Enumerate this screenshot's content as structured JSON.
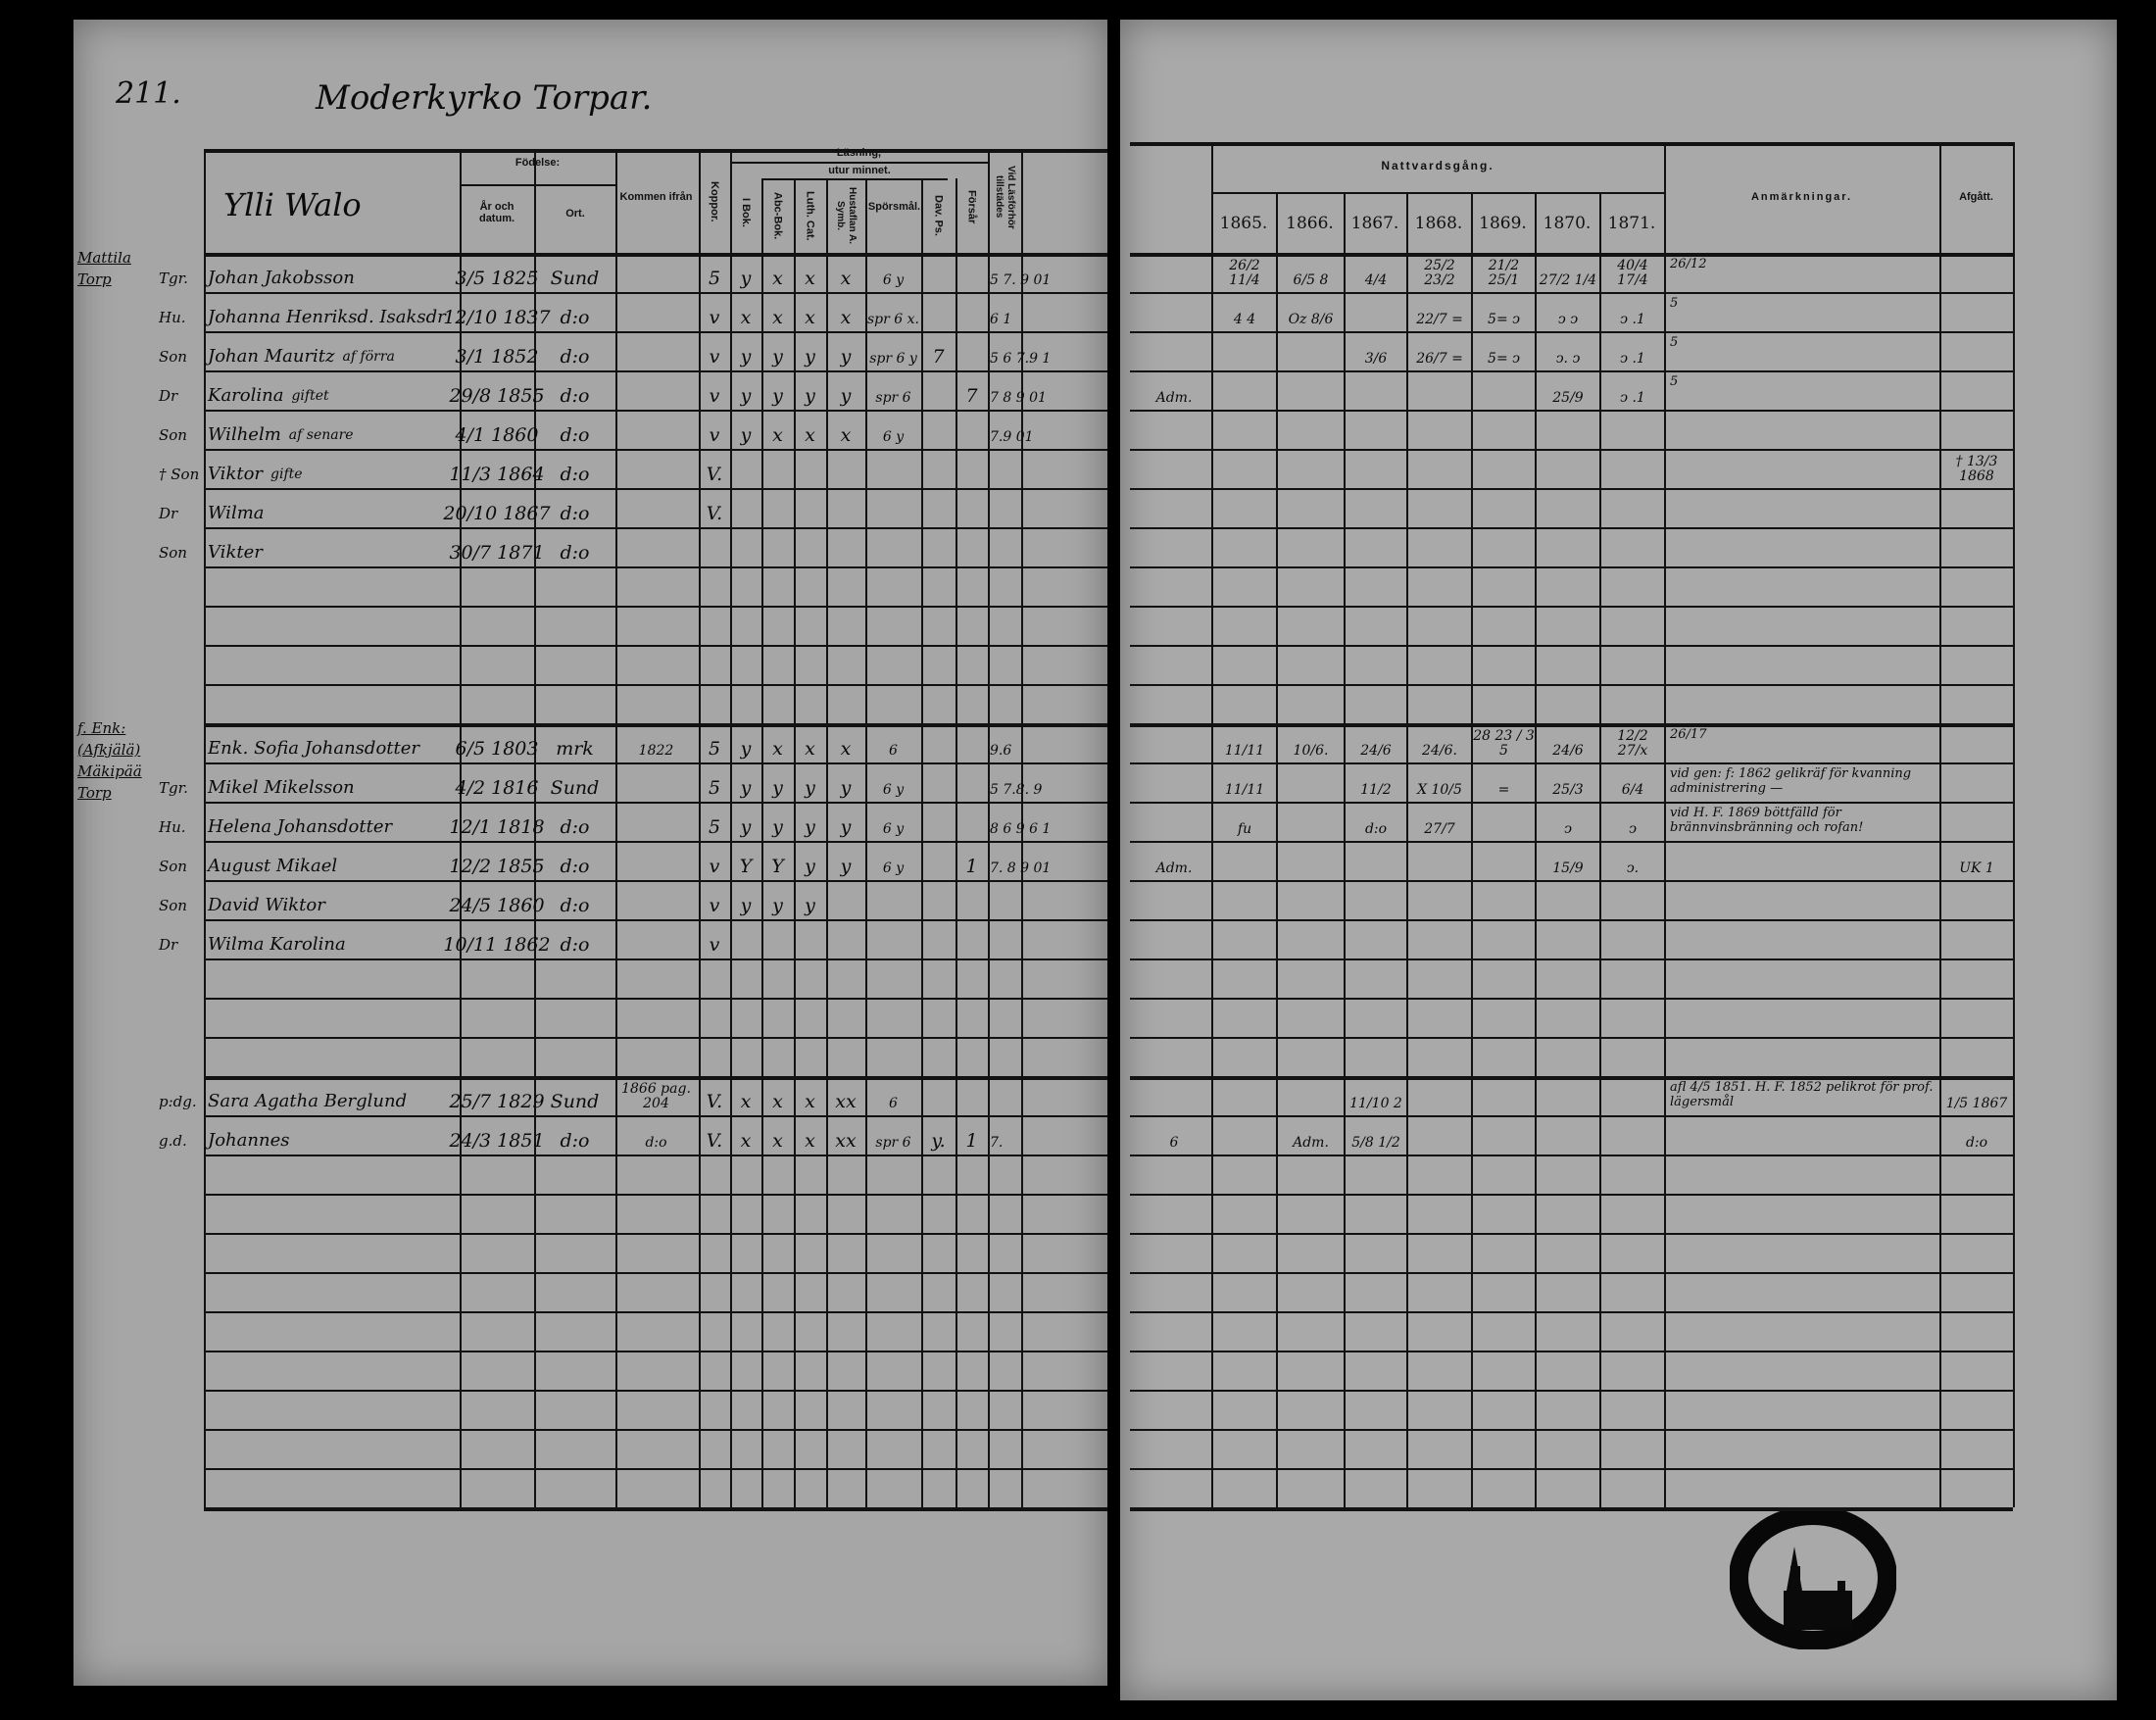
{
  "left": {
    "page_number": "211.",
    "title": "Moderkyrko Torpar.",
    "name_header": "Ylli Walo",
    "headers": {
      "birth": "Födelse:",
      "birth_date": "År och datum.",
      "birth_place": "Ort.",
      "came_from": "Kommen ifrån",
      "smallpox": "Koppor.",
      "reading": "Läsning,",
      "from_memory": "utur minnet.",
      "in_book": "I Bok.",
      "abc_book": "Abc-Bok.",
      "luth_cat": "Luth. Cat.",
      "household_table": "Hustaflan A. Symb.",
      "questions": "Spörsmål.",
      "dav_ps": "Dav. Ps.",
      "confirmation": "Försår",
      "present_at_exam": "Vid Läsförhör tillstädes"
    },
    "households": [
      {
        "label": "Mattila Torp",
        "rows": [
          {
            "role": "Tgr.",
            "name": "Johan Jakobsson",
            "note": "",
            "born": "3/5 1825",
            "place": "Sund",
            "came_from": "",
            "koppor": "5",
            "i_bok": "y",
            "abc": "x",
            "luth": "x",
            "husta": "x",
            "spors": "6 y",
            "dav": "",
            "forsar": "",
            "lasforhor": "5 7. 9 01"
          },
          {
            "role": "Hu.",
            "name": "Johanna Henriksd. Isaksdr",
            "note": "",
            "born": "12/10 1837",
            "place": "d:o",
            "came_from": "",
            "koppor": "v",
            "i_bok": "x",
            "abc": "x",
            "luth": "x",
            "husta": "x",
            "spors": "spr 6 x.",
            "dav": "",
            "forsar": "",
            "lasforhor": "6 1"
          },
          {
            "role": "Son",
            "name": "Johan Mauritz",
            "note": "af förra",
            "born": "3/1 1852",
            "place": "d:o",
            "came_from": "",
            "koppor": "v",
            "i_bok": "y",
            "abc": "y",
            "luth": "y",
            "husta": "y",
            "spors": "spr 6 y",
            "dav": "7",
            "forsar": "",
            "lasforhor": "5 6 7.9 1"
          },
          {
            "role": "Dr",
            "name": "Karolina",
            "note": "giftet",
            "born": "29/8 1855",
            "place": "d:o",
            "came_from": "",
            "koppor": "v",
            "i_bok": "y",
            "abc": "y",
            "luth": "y",
            "husta": "y",
            "spors": "spr 6",
            "dav": "",
            "forsar": "7",
            "lasforhor": "7 8 9 01"
          },
          {
            "role": "Son",
            "name": "Wilhelm",
            "note": "af senare",
            "born": "4/1 1860",
            "place": "d:o",
            "came_from": "",
            "koppor": "v",
            "i_bok": "y",
            "abc": "x",
            "luth": "x",
            "husta": "x",
            "spors": "6 y",
            "dav": "",
            "forsar": "",
            "lasforhor": "7.9 01"
          },
          {
            "role": "† Son",
            "name": "Viktor",
            "note": "gifte",
            "born": "11/3 1864",
            "place": "d:o",
            "came_from": "",
            "koppor": "V.",
            "i_bok": "",
            "abc": "",
            "luth": "",
            "husta": "",
            "spors": "",
            "dav": "",
            "forsar": "",
            "lasforhor": ""
          },
          {
            "role": "Dr",
            "name": "Wilma",
            "note": "",
            "born": "20/10 1867",
            "place": "d:o",
            "came_from": "",
            "koppor": "V.",
            "i_bok": "",
            "abc": "",
            "luth": "",
            "husta": "",
            "spors": "",
            "dav": "",
            "forsar": "",
            "lasforhor": ""
          },
          {
            "role": "Son",
            "name": "Vikter",
            "note": "",
            "born": "30/7 1871",
            "place": "d:o",
            "came_from": "",
            "koppor": "",
            "i_bok": "",
            "abc": "",
            "luth": "",
            "husta": "",
            "spors": "",
            "dav": "",
            "forsar": "",
            "lasforhor": ""
          }
        ]
      },
      {
        "label": "f. Enk: (Afkjälä) Mäkipää Torp",
        "rows": [
          {
            "role": "",
            "name": "Enk. Sofia Johansdotter",
            "note": "",
            "born": "6/5 1803",
            "place": "mrk",
            "came_from": "1822",
            "koppor": "5",
            "i_bok": "y",
            "abc": "x",
            "luth": "x",
            "husta": "x",
            "spors": "6",
            "dav": "",
            "forsar": "",
            "lasforhor": "9.6"
          },
          {
            "role": "Tgr.",
            "name": "Mikel Mikelsson",
            "note": "",
            "born": "4/2 1816",
            "place": "Sund",
            "came_from": "",
            "koppor": "5",
            "i_bok": "y",
            "abc": "y",
            "luth": "y",
            "husta": "y",
            "spors": "6 y",
            "dav": "",
            "forsar": "",
            "lasforhor": "5 7.8. 9"
          },
          {
            "role": "Hu.",
            "name": "Helena Johansdotter",
            "note": "",
            "born": "12/1 1818",
            "place": "d:o",
            "came_from": "",
            "koppor": "5",
            "i_bok": "y",
            "abc": "y",
            "luth": "y",
            "husta": "y",
            "spors": "6 y",
            "dav": "",
            "forsar": "",
            "lasforhor": "8 6 9 6 1"
          },
          {
            "role": "Son",
            "name": "August Mikael",
            "note": "",
            "born": "12/2 1855",
            "place": "d:o",
            "came_from": "",
            "koppor": "v",
            "i_bok": "Y",
            "abc": "Y",
            "luth": "y",
            "husta": "y",
            "spors": "6 y",
            "dav": "",
            "forsar": "1",
            "lasforhor": "7. 8 9 01"
          },
          {
            "role": "Son",
            "name": "David Wiktor",
            "note": "",
            "born": "24/5 1860",
            "place": "d:o",
            "came_from": "",
            "koppor": "v",
            "i_bok": "y",
            "abc": "y",
            "luth": "y",
            "husta": "",
            "spors": "",
            "dav": "",
            "forsar": "",
            "lasforhor": ""
          },
          {
            "role": "Dr",
            "name": "Wilma Karolina",
            "note": "",
            "born": "10/11 1862",
            "place": "d:o",
            "came_from": "",
            "koppor": "v",
            "i_bok": "",
            "abc": "",
            "luth": "",
            "husta": "",
            "spors": "",
            "dav": "",
            "forsar": "",
            "lasforhor": ""
          }
        ]
      },
      {
        "label": "",
        "rows": [
          {
            "role": "p:dg.",
            "name": "Sara Agatha Berglund",
            "note": "",
            "born": "25/7 1829",
            "place": "Sund",
            "came_from": "1866 pag. 204",
            "koppor": "V.",
            "i_bok": "x",
            "abc": "x",
            "luth": "x",
            "husta": "xx",
            "spors": "6",
            "dav": "",
            "forsar": "",
            "lasforhor": ""
          },
          {
            "role": "g.d.",
            "name": "Johannes",
            "note": "",
            "born": "24/3 1851",
            "place": "d:o",
            "came_from": "d:o",
            "koppor": "V.",
            "i_bok": "x",
            "abc": "x",
            "luth": "x",
            "husta": "xx",
            "spors": "spr 6",
            "dav": "y.",
            "forsar": "1",
            "lasforhor": "7."
          }
        ]
      }
    ]
  },
  "right": {
    "headers": {
      "communion": "Nattvardsgång.",
      "years": [
        "1865.",
        "1866.",
        "1867.",
        "1868.",
        "1869.",
        "1870.",
        "1871."
      ],
      "remarks": "Anmärkningar.",
      "departed": "Afgått."
    },
    "households": [
      {
        "rows": [
          {
            "margin": "",
            "comm": [
              "26/2 11/4",
              "6/5 8",
              "4/4",
              "25/2 23/2",
              "21/2 25/1",
              "27/2 1/4",
              "40/4 17/4"
            ],
            "remark": "26/12",
            "afgatt": ""
          },
          {
            "margin": "",
            "comm": [
              "4 4",
              "Oz 8/6",
              "",
              "22/7 =",
              "5= ↄ",
              "ↄ ↄ",
              "ↄ .1"
            ],
            "remark": "5",
            "afgatt": ""
          },
          {
            "margin": "",
            "comm": [
              "",
              "",
              "3/6",
              "26/7 =",
              "5= ↄ",
              "ↄ. ↄ",
              "ↄ .1"
            ],
            "remark": "5",
            "afgatt": ""
          },
          {
            "margin": "Adm.",
            "comm": [
              "",
              "",
              "",
              "",
              "",
              "25/9",
              "ↄ .1"
            ],
            "remark": "5",
            "afgatt": ""
          },
          {
            "margin": "",
            "comm": [
              "",
              "",
              "",
              "",
              "",
              "",
              ""
            ],
            "remark": "",
            "afgatt": ""
          },
          {
            "margin": "",
            "comm": [
              "",
              "",
              "",
              "",
              "",
              "",
              ""
            ],
            "remark": "",
            "afgatt": "† 13/3 1868"
          },
          {
            "margin": "",
            "comm": [
              "",
              "",
              "",
              "",
              "",
              "",
              ""
            ],
            "remark": "",
            "afgatt": ""
          },
          {
            "margin": "",
            "comm": [
              "",
              "",
              "",
              "",
              "",
              "",
              ""
            ],
            "remark": "",
            "afgatt": ""
          }
        ]
      },
      {
        "rows": [
          {
            "margin": "",
            "comm": [
              "11/11",
              "10/6.",
              "24/6",
              "24/6.",
              "28 23 / 3 5",
              "24/6",
              "12/2 27/x"
            ],
            "remark": "26/17",
            "afgatt": ""
          },
          {
            "margin": "",
            "comm": [
              "11/11",
              "",
              "11/2",
              "X 10/5",
              "=",
              "25/3",
              "6/4"
            ],
            "remark": "vid gen: f: 1862 gelikräf för kvanning administrering —",
            "afgatt": ""
          },
          {
            "margin": "",
            "comm": [
              "fu",
              "",
              "d:o",
              "27/7",
              "",
              "ↄ",
              "ↄ"
            ],
            "remark": "vid H. F. 1869 böttfälld för brännvinsbränning och rofan!",
            "afgatt": ""
          },
          {
            "margin": "Adm.",
            "comm": [
              "",
              "",
              "",
              "",
              "",
              "15/9",
              "ↄ."
            ],
            "remark": "",
            "afgatt": "UK 1"
          },
          {
            "margin": "",
            "comm": [
              "",
              "",
              "",
              "",
              "",
              "",
              ""
            ],
            "remark": "",
            "afgatt": ""
          },
          {
            "margin": "",
            "comm": [
              "",
              "",
              "",
              "",
              "",
              "",
              ""
            ],
            "remark": "",
            "afgatt": ""
          }
        ]
      },
      {
        "rows": [
          {
            "margin": "",
            "comm": [
              "",
              "",
              "11/10 2",
              "",
              "",
              "",
              ""
            ],
            "remark": "afl 4/5 1851. H. F. 1852 pelikrot för prof. lägersmål",
            "afgatt": "1/5 1867"
          },
          {
            "margin": "6",
            "comm": [
              "",
              "Adm.",
              "5/8 1/2",
              "",
              "",
              "",
              ""
            ],
            "remark": "",
            "afgatt": "d:o"
          }
        ]
      }
    ]
  },
  "colors": {
    "background": "#000000",
    "paper": "#a6a6a6",
    "ink": "#111111"
  }
}
